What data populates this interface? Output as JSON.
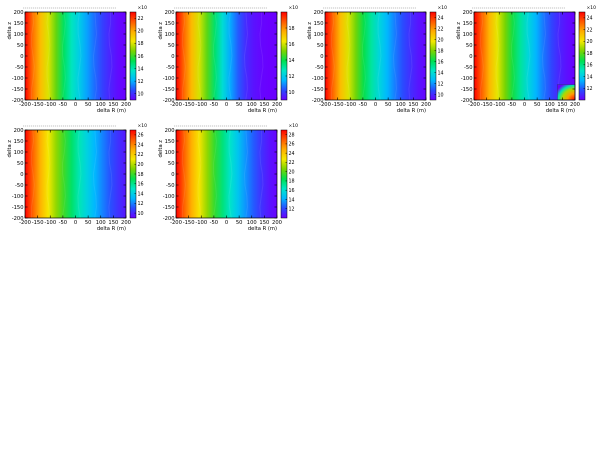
{
  "figure": {
    "colors": {
      "background": "#ffffff",
      "axis": "#000000",
      "palette": [
        "#6a00ff",
        "#2a4bff",
        "#00b7ff",
        "#00e6c8",
        "#00e050",
        "#7ad400",
        "#f4e800",
        "#ffae00",
        "#ff5a00",
        "#ff0000"
      ]
    }
  },
  "chart_data": [
    {
      "type": "heatmap",
      "title": "",
      "xlabel": "delta R (m)",
      "ylabel": "delta z",
      "xlim": [
        -200,
        200
      ],
      "ylim": [
        -200,
        200
      ],
      "x_ticks": [
        "-200",
        "-150",
        "-100",
        "-50",
        "0",
        "50",
        "100",
        "150",
        "200"
      ],
      "y_ticks": [
        "200",
        "150",
        "100",
        "50",
        "0",
        "-50",
        "-100",
        "-150",
        "-200"
      ],
      "colorbar_ticks": [
        "22",
        "20",
        "18",
        "16",
        "14",
        "12",
        "10"
      ],
      "colorbar_exponent": "×10",
      "zlim": [
        9,
        23
      ],
      "columns": [
        23,
        21,
        19.5,
        18,
        16.5,
        15,
        13.8,
        12.8,
        11.8,
        11,
        10.3,
        9.7,
        9.2,
        9
      ],
      "hotspot": null
    },
    {
      "type": "heatmap",
      "title": "",
      "xlabel": "delta R (m)",
      "ylabel": "delta z",
      "xlim": [
        -200,
        200
      ],
      "ylim": [
        -200,
        200
      ],
      "x_ticks": [
        "-200",
        "-150",
        "-100",
        "-50",
        "0",
        "50",
        "100",
        "150",
        "200"
      ],
      "y_ticks": [
        "200",
        "150",
        "100",
        "50",
        "0",
        "-50",
        "-100",
        "-150",
        "-200"
      ],
      "colorbar_ticks": [
        "18",
        "16",
        "14",
        "12",
        "10"
      ],
      "colorbar_exponent": "×10",
      "zlim": [
        9,
        20
      ],
      "columns": [
        20,
        18.6,
        17.3,
        16,
        14.8,
        13.6,
        12.4,
        11.3,
        10.4,
        9.7,
        9.3,
        9.1,
        9,
        9
      ],
      "hotspot": null
    },
    {
      "type": "heatmap",
      "title": "",
      "xlabel": "delta R (m)",
      "ylabel": "delta z",
      "xlim": [
        -200,
        200
      ],
      "ylim": [
        -200,
        200
      ],
      "x_ticks": [
        "-200",
        "-150",
        "-100",
        "-50",
        "0",
        "50",
        "100",
        "150",
        "200"
      ],
      "y_ticks": [
        "200",
        "150",
        "100",
        "50",
        "0",
        "-50",
        "-100",
        "-150",
        "-200"
      ],
      "colorbar_ticks": [
        "24",
        "22",
        "20",
        "18",
        "16",
        "14",
        "12",
        "10"
      ],
      "colorbar_exponent": "×10",
      "zlim": [
        9,
        25
      ],
      "columns": [
        25,
        23,
        21,
        19.3,
        17.7,
        16.2,
        14.9,
        13.7,
        12.6,
        11.6,
        10.8,
        10.1,
        9.5,
        9.1
      ],
      "hotspot": null
    },
    {
      "type": "heatmap",
      "title": "",
      "xlabel": "delta R (m)",
      "ylabel": "delta z",
      "xlim": [
        -200,
        200
      ],
      "ylim": [
        -200,
        200
      ],
      "x_ticks": [
        "-200",
        "-150",
        "-100",
        "-50",
        "0",
        "50",
        "100",
        "150",
        "200"
      ],
      "y_ticks": [
        "200",
        "150",
        "100",
        "50",
        "0",
        "-50",
        "-100",
        "-150",
        "-200"
      ],
      "colorbar_ticks": [
        "24",
        "22",
        "20",
        "18",
        "16",
        "14",
        "12"
      ],
      "colorbar_exponent": "×10",
      "zlim": [
        10,
        25
      ],
      "columns": [
        25,
        23.2,
        21.4,
        19.8,
        18.3,
        16.9,
        15.6,
        14.4,
        13.3,
        12.3,
        11.5,
        10.8,
        10.3,
        10
      ],
      "hotspot": {
        "x": [
          130,
          200
        ],
        "y": [
          -200,
          -130
        ],
        "value": 25
      }
    },
    {
      "type": "heatmap",
      "title": "",
      "xlabel": "delta R (m)",
      "ylabel": "delta z",
      "xlim": [
        -200,
        200
      ],
      "ylim": [
        -200,
        200
      ],
      "x_ticks": [
        "-200",
        "-150",
        "-100",
        "-50",
        "0",
        "50",
        "100",
        "150",
        "200"
      ],
      "y_ticks": [
        "200",
        "150",
        "100",
        "50",
        "0",
        "-50",
        "-100",
        "-150",
        "-200"
      ],
      "colorbar_ticks": [
        "26",
        "24",
        "22",
        "20",
        "18",
        "16",
        "14",
        "12",
        "10"
      ],
      "colorbar_exponent": "×10",
      "zlim": [
        9,
        27
      ],
      "columns": [
        27,
        24.8,
        22.8,
        21,
        19.4,
        18,
        16.6,
        15.3,
        14.1,
        13,
        12,
        11.1,
        10.3,
        9.6
      ],
      "hotspot": null
    },
    {
      "type": "heatmap",
      "title": "",
      "xlabel": "delta R (m)",
      "ylabel": "delta z",
      "xlim": [
        -200,
        200
      ],
      "ylim": [
        -200,
        200
      ],
      "x_ticks": [
        "-200",
        "-150",
        "-100",
        "-50",
        "0",
        "50",
        "100",
        "150",
        "200"
      ],
      "y_ticks": [
        "200",
        "150",
        "100",
        "50",
        "0",
        "-50",
        "-100",
        "-150",
        "-200"
      ],
      "colorbar_ticks": [
        "28",
        "26",
        "24",
        "22",
        "20",
        "18",
        "16",
        "14",
        "12"
      ],
      "colorbar_exponent": "×10",
      "zlim": [
        10,
        29
      ],
      "columns": [
        29,
        26.8,
        24.7,
        22.8,
        21,
        19.3,
        17.7,
        16.2,
        14.8,
        13.5,
        12.4,
        11.4,
        10.6,
        10.1
      ],
      "hotspot": null
    }
  ]
}
